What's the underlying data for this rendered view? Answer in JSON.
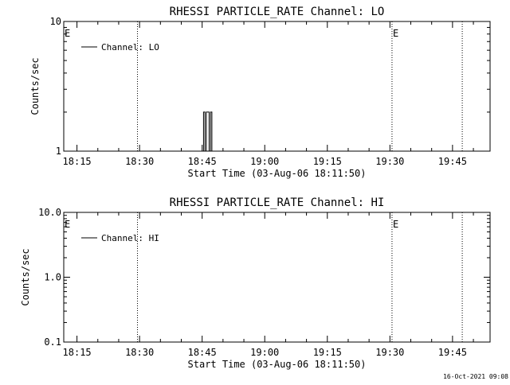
{
  "chart_data": [
    {
      "type": "line",
      "title": "RHESSI PARTICLE_RATE Channel: LO",
      "xlabel": "Start Time (03-Aug-06 18:11:50)",
      "ylabel": "Counts/sec",
      "yscale": "log",
      "ylim": [
        1,
        10
      ],
      "xlim": [
        "18:11:50",
        "19:54:00"
      ],
      "x_ticks": [
        "18:15",
        "18:30",
        "18:45",
        "19:00",
        "19:15",
        "19:30",
        "19:45"
      ],
      "y_ticks": [
        "1",
        "10"
      ],
      "grid": false,
      "legend_position": "top-left",
      "series": [
        {
          "name": "Channel: LO",
          "x": [
            "18:45:00",
            "18:45:20",
            "18:45:20",
            "18:45:40",
            "18:45:40",
            "18:46:00",
            "18:46:00",
            "18:46:40",
            "18:46:40",
            "18:47:00",
            "18:47:00",
            "18:47:20",
            "18:47:20"
          ],
          "y": [
            1,
            1,
            2,
            2,
            1,
            1,
            2,
            2,
            1,
            1,
            2,
            2,
            1
          ]
        }
      ],
      "annotations": [
        {
          "type": "vline",
          "x": "18:29:30",
          "style": "dotted"
        },
        {
          "type": "vline",
          "x": "19:30:30",
          "style": "dotted",
          "label": "E"
        },
        {
          "type": "vline",
          "x": "19:47:20",
          "style": "dotted"
        },
        {
          "type": "text",
          "label": "E",
          "x": "18:11:50"
        }
      ]
    },
    {
      "type": "line",
      "title": "RHESSI PARTICLE_RATE Channel: HI",
      "xlabel": "Start Time (03-Aug-06 18:11:50)",
      "ylabel": "Counts/sec",
      "yscale": "log",
      "ylim": [
        0.1,
        10
      ],
      "xlim": [
        "18:11:50",
        "19:54:00"
      ],
      "x_ticks": [
        "18:15",
        "18:30",
        "18:45",
        "19:00",
        "19:15",
        "19:30",
        "19:45"
      ],
      "y_ticks": [
        "0.1",
        "1.0",
        "10.0"
      ],
      "grid": false,
      "legend_position": "top-left",
      "series": [
        {
          "name": "Channel: HI",
          "x": [],
          "y": []
        }
      ],
      "annotations": [
        {
          "type": "vline",
          "x": "18:29:30",
          "style": "dotted"
        },
        {
          "type": "vline",
          "x": "19:30:30",
          "style": "dotted",
          "label": "E"
        },
        {
          "type": "vline",
          "x": "19:47:20",
          "style": "dotted"
        },
        {
          "type": "text",
          "label": "E",
          "x": "18:11:50"
        }
      ]
    }
  ],
  "timestamp": "16-Oct-2021 09:08"
}
